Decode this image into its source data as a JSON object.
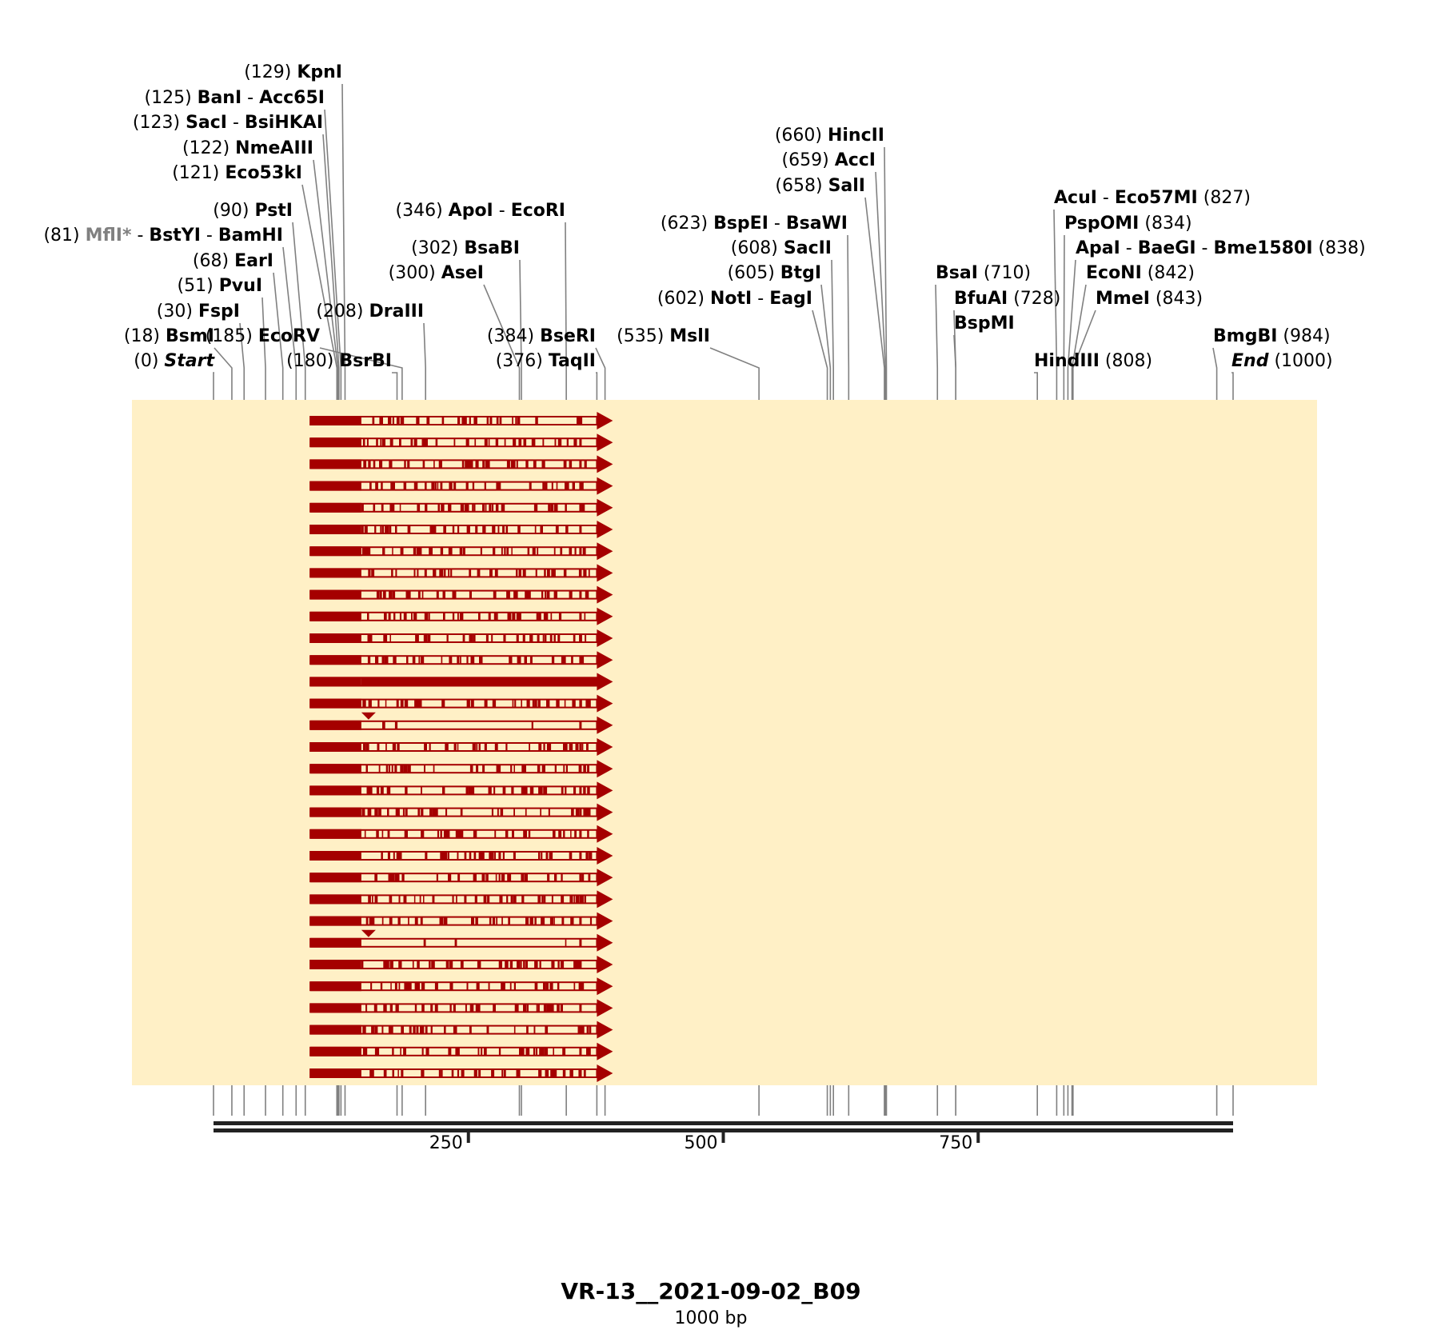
{
  "title": "VR-13__2021-09-02_B09",
  "subtitle": "1000 bp",
  "sequence_length": 1000,
  "axis_ticks": [
    250,
    500,
    750
  ],
  "colors": {
    "background": "#ffffff",
    "plot_area": "#fff0c6",
    "read": "#a50000",
    "site_line": "#808080",
    "ruler": "#222222",
    "grey_label": "#808080"
  },
  "sites": [
    {
      "pos": 0,
      "label": "Start",
      "pos_text": "(0)",
      "italic": true
    },
    {
      "pos": 18,
      "label": "BsmI",
      "pos_text": "(18)"
    },
    {
      "pos": 30,
      "label": "FspI",
      "pos_text": "(30)"
    },
    {
      "pos": 51,
      "label": "PvuI",
      "pos_text": "(51)"
    },
    {
      "pos": 68,
      "label": "EarI",
      "pos_text": "(68)"
    },
    {
      "pos": 81,
      "label": "BstYI - BamHI",
      "prefix": "MflI*",
      "pos_text": "(81)"
    },
    {
      "pos": 90,
      "label": "PstI",
      "pos_text": "(90)"
    },
    {
      "pos": 121,
      "label": "Eco53kI",
      "pos_text": "(121)"
    },
    {
      "pos": 122,
      "label": "NmeAIII",
      "pos_text": "(122)"
    },
    {
      "pos": 123,
      "label": "SacI - BsiHKAI",
      "pos_text": "(123)"
    },
    {
      "pos": 125,
      "label": "BanI - Acc65I",
      "pos_text": "(125)"
    },
    {
      "pos": 129,
      "label": "KpnI",
      "pos_text": "(129)"
    },
    {
      "pos": 180,
      "label": "BsrBI",
      "pos_text": "(180)"
    },
    {
      "pos": 185,
      "label": "EcoRV",
      "pos_text": "(185)"
    },
    {
      "pos": 208,
      "label": "DraIII",
      "pos_text": "(208)"
    },
    {
      "pos": 300,
      "label": "AseI",
      "pos_text": "(300)"
    },
    {
      "pos": 302,
      "label": "BsaBI",
      "pos_text": "(302)"
    },
    {
      "pos": 346,
      "label": "ApoI - EcoRI",
      "pos_text": "(346)"
    },
    {
      "pos": 376,
      "label": "TaqII",
      "pos_text": "(376)"
    },
    {
      "pos": 384,
      "label": "BseRI",
      "pos_text": "(384)"
    },
    {
      "pos": 535,
      "label": "MslI",
      "pos_text": "(535)"
    },
    {
      "pos": 602,
      "label": "NotI - EagI",
      "pos_text": "(602)"
    },
    {
      "pos": 605,
      "label": "BtgI",
      "pos_text": "(605)"
    },
    {
      "pos": 608,
      "label": "SacII",
      "pos_text": "(608)"
    },
    {
      "pos": 623,
      "label": "BspEI - BsaWI",
      "pos_text": "(623)"
    },
    {
      "pos": 658,
      "label": "SalI",
      "pos_text": "(658)"
    },
    {
      "pos": 659,
      "label": "AccI",
      "pos_text": "(659)"
    },
    {
      "pos": 660,
      "label": "HincII",
      "pos_text": "(660)"
    },
    {
      "pos": 710,
      "label": "BsaI",
      "pos_text": "(710)",
      "side": "right"
    },
    {
      "pos": 728,
      "label": "BfuAI",
      "pos_text": "(728)",
      "side": "right"
    },
    {
      "pos": 728,
      "label": "BspMI",
      "pos_text": "",
      "side": "right"
    },
    {
      "pos": 808,
      "label": "HindIII",
      "pos_text": "(808)",
      "side": "right"
    },
    {
      "pos": 827,
      "label": "AcuI - Eco57MI",
      "pos_text": "(827)",
      "side": "right"
    },
    {
      "pos": 834,
      "label": "PspOMI",
      "pos_text": "(834)",
      "side": "right"
    },
    {
      "pos": 838,
      "label": "ApaI - BaeGI - Bme1580I",
      "pos_text": "(838)",
      "side": "right"
    },
    {
      "pos": 842,
      "label": "EcoNI",
      "pos_text": "(842)",
      "side": "right"
    },
    {
      "pos": 843,
      "label": "MmeI",
      "pos_text": "(843)",
      "side": "right"
    },
    {
      "pos": 984,
      "label": "BmgBI",
      "pos_text": "(984)",
      "side": "right"
    },
    {
      "pos": 1000,
      "label": "End",
      "pos_text": "(1000)",
      "italic": true,
      "side": "right"
    }
  ],
  "reads": {
    "count": 31,
    "start_bp": 95,
    "end_bp": 376,
    "solid_until_bp": 145
  }
}
